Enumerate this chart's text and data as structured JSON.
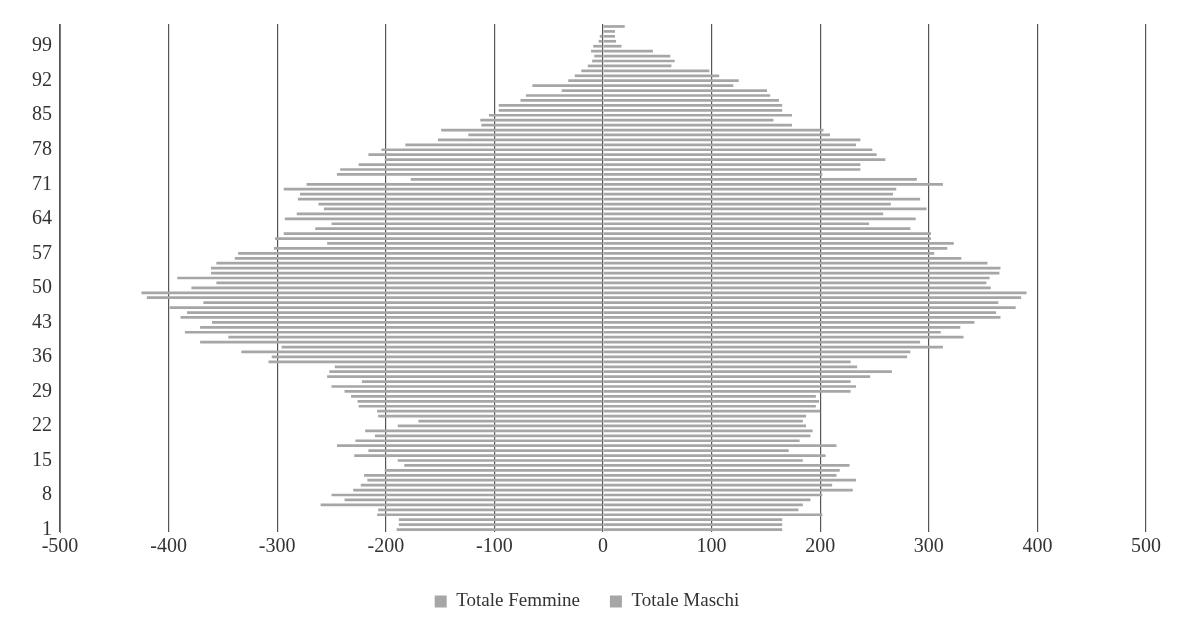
{
  "chart_data": {
    "type": "bar",
    "orientation": "horizontal",
    "stacked": true,
    "categories": [
      null,
      null,
      null,
      null,
      "99",
      null,
      null,
      null,
      null,
      null,
      null,
      "92",
      null,
      null,
      null,
      null,
      null,
      null,
      "85",
      null,
      null,
      null,
      null,
      null,
      null,
      "78",
      null,
      null,
      null,
      null,
      null,
      null,
      "71",
      null,
      null,
      null,
      null,
      null,
      null,
      "64",
      null,
      null,
      null,
      null,
      null,
      null,
      "57",
      null,
      null,
      null,
      null,
      null,
      null,
      "50",
      null,
      null,
      null,
      null,
      null,
      null,
      "43",
      null,
      null,
      null,
      null,
      null,
      null,
      "36",
      null,
      null,
      null,
      null,
      null,
      null,
      "29",
      null,
      null,
      null,
      null,
      null,
      null,
      "22",
      null,
      null,
      null,
      null,
      null,
      null,
      "15",
      null,
      null,
      null,
      null,
      null,
      null,
      "8",
      null,
      null,
      null,
      null,
      null,
      null,
      "1"
    ],
    "series": [
      {
        "name": "Totale Femmine",
        "color": "#a6a6a6",
        "values": [
          null,
          null,
          -3,
          -4,
          -9,
          -11,
          -8,
          -10,
          -14,
          -20,
          -26,
          -32,
          -65,
          -38,
          -71,
          -76,
          -96,
          -96,
          -105,
          -113,
          -112,
          -149,
          -124,
          -152,
          -182,
          -204,
          -216,
          -201,
          -225,
          -242,
          -245,
          -177,
          -273,
          -294,
          -279,
          -281,
          -262,
          -257,
          -282,
          -293,
          -250,
          -265,
          -294,
          -302,
          -254,
          -303,
          -336,
          -339,
          -356,
          -361,
          -361,
          -392,
          -356,
          -379,
          -425,
          -420,
          -368,
          -399,
          -383,
          -389,
          -360,
          -371,
          -385,
          -345,
          -371,
          -296,
          -333,
          -305,
          -308,
          -247,
          -252,
          -254,
          -222,
          -250,
          -238,
          -232,
          -226,
          -225,
          -208,
          -207,
          -170,
          -189,
          -219,
          -210,
          -228,
          -245,
          -216,
          -229,
          -189,
          -183,
          -201,
          -220,
          -217,
          -223,
          -230,
          -250,
          -238,
          -260,
          -207,
          -208,
          -188,
          -188,
          -190
        ]
      },
      {
        "name": "Totale Maschi",
        "color": "#a6a6a6",
        "values": [
          20,
          11,
          11,
          12,
          17,
          46,
          62,
          66,
          63,
          98,
          107,
          125,
          120,
          151,
          154,
          162,
          165,
          165,
          174,
          157,
          174,
          203,
          209,
          237,
          233,
          248,
          252,
          260,
          237,
          237,
          202,
          289,
          313,
          270,
          267,
          292,
          265,
          298,
          258,
          288,
          245,
          283,
          302,
          302,
          323,
          317,
          305,
          330,
          354,
          366,
          365,
          356,
          353,
          357,
          390,
          385,
          364,
          380,
          362,
          366,
          342,
          329,
          311,
          332,
          292,
          313,
          283,
          280,
          228,
          234,
          266,
          246,
          228,
          233,
          228,
          196,
          199,
          196,
          200,
          187,
          184,
          187,
          193,
          191,
          181,
          215,
          171,
          205,
          184,
          227,
          218,
          215,
          233,
          211,
          230,
          202,
          191,
          184,
          180,
          202,
          165,
          165,
          165
        ]
      }
    ],
    "xlim": [
      -500,
      500
    ],
    "xticks": [
      -500,
      -400,
      -300,
      -200,
      -100,
      0,
      100,
      200,
      300,
      400,
      500
    ],
    "grid": "x",
    "legend": "bottom"
  }
}
